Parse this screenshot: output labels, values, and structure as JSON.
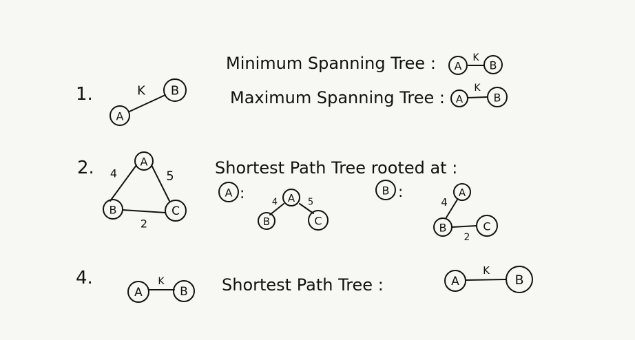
{
  "sections": [
    {
      "number": "1."
    },
    {
      "number": "2."
    },
    {
      "number": "4."
    }
  ],
  "s1": {
    "graph": {
      "nodes": [
        "A",
        "B"
      ],
      "edge_label": "K"
    },
    "mst_label": "Minimum Spanning Tree :",
    "mst": {
      "nodes": [
        "A",
        "B"
      ],
      "edge_label": "K"
    },
    "maxst_label": "Maximum Spanning Tree :",
    "maxst": {
      "nodes": [
        "A",
        "B"
      ],
      "edge_label": "K"
    }
  },
  "s2": {
    "graph": {
      "nodes": [
        "A",
        "B",
        "C"
      ],
      "edges": [
        "4",
        "5",
        "2"
      ]
    },
    "heading": "Shortest Path Tree rooted at :",
    "root_a": {
      "root": "A",
      "colon": ":",
      "nodes": [
        "A",
        "B",
        "C"
      ],
      "edges": [
        "4",
        "5"
      ]
    },
    "root_b": {
      "root": "B",
      "colon": ":",
      "nodes": [
        "A",
        "B",
        "C"
      ],
      "edges": [
        "4",
        "2"
      ]
    }
  },
  "s4": {
    "graph": {
      "nodes": [
        "A",
        "B"
      ],
      "edge_label": "K"
    },
    "spt_label": "Shortest Path Tree :",
    "spt": {
      "nodes": [
        "A",
        "B"
      ],
      "edge_label": "K"
    }
  }
}
